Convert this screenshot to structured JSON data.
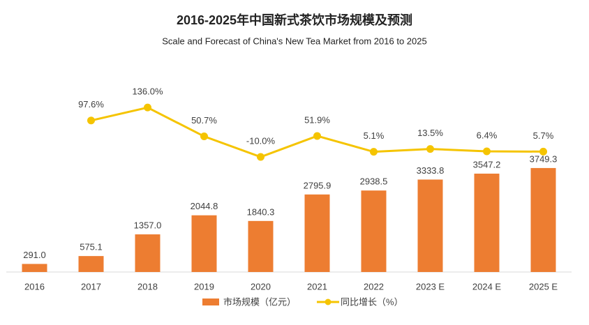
{
  "chart_data": {
    "type": "bar-line",
    "title": "2016-2025年中国新式茶饮市场规模及预测",
    "subtitle": "Scale and Forecast of China's New Tea Market from 2016 to 2025",
    "categories": [
      "2016",
      "2017",
      "2018",
      "2019",
      "2020",
      "2021",
      "2022",
      "2023 E",
      "2024 E",
      "2025 E"
    ],
    "series": [
      {
        "name": "市场规模（亿元）",
        "type": "bar",
        "color": "#ed7d31",
        "values": [
          291.0,
          575.1,
          1357.0,
          2044.8,
          1840.3,
          2795.9,
          2938.5,
          3333.8,
          3547.2,
          3749.3
        ],
        "value_labels": [
          "291.0",
          "575.1",
          "1357.0",
          "2044.8",
          "1840.3",
          "2795.9",
          "2938.5",
          "3333.8",
          "3547.2",
          "3749.3"
        ]
      },
      {
        "name": "同比增长（%）",
        "type": "line",
        "axis": "y2",
        "color": "#f5c400",
        "values": [
          null,
          97.6,
          136.0,
          50.7,
          -10.0,
          51.9,
          5.1,
          13.5,
          6.4,
          5.7
        ],
        "value_labels": [
          null,
          "97.6%",
          "136.0%",
          "50.7%",
          "-10.0%",
          "51.9%",
          "5.1%",
          "13.5%",
          "6.4%",
          "5.7%"
        ]
      }
    ],
    "ylim": [
      0,
      8300
    ],
    "y2lim": [
      -350,
      330
    ],
    "grid": false,
    "legend": "bottom"
  }
}
